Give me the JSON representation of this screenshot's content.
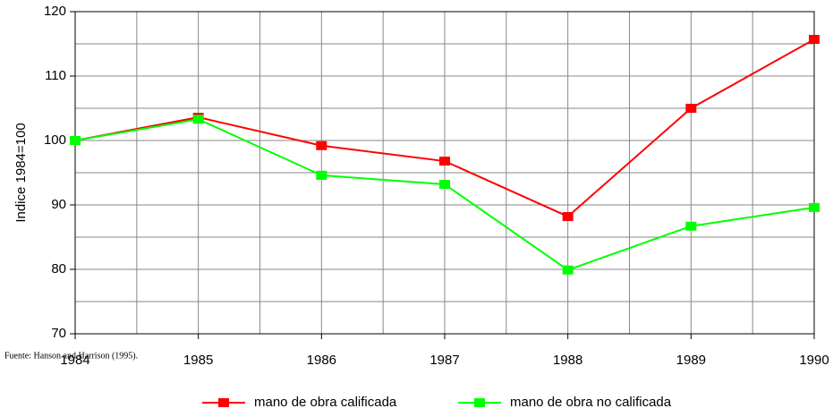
{
  "chart_data": {
    "type": "line",
    "y_label": "Indice 1984=100",
    "source": "Fuente: Hanson and Harrison (1995).",
    "x": [
      1984,
      1985,
      1986,
      1987,
      1988,
      1989,
      1990
    ],
    "series": [
      {
        "name": "mano de obra calificada",
        "color": "#ff0000",
        "values": [
          100,
          103.6,
          99.2,
          96.8,
          88.2,
          105,
          115.7
        ]
      },
      {
        "name": "mano de obra no calificada",
        "color": "#00ff00",
        "values": [
          100,
          103.3,
          94.6,
          93.2,
          79.9,
          86.7,
          89.6
        ]
      }
    ],
    "xlim": [
      1984,
      1990
    ],
    "xticks": [
      1984,
      1985,
      1986,
      1987,
      1988,
      1989,
      1990
    ],
    "ylim": [
      70,
      120
    ],
    "yticks": [
      70,
      80,
      90,
      100,
      110,
      120
    ],
    "grid": true,
    "xgrid": [
      1984.5,
      1985,
      1985.5,
      1986,
      1986.5,
      1987,
      1987.5,
      1988,
      1988.5,
      1989,
      1989.5
    ],
    "ygrid": [
      75,
      80,
      85,
      90,
      95,
      100,
      105,
      110,
      115
    ],
    "legend": "bottom"
  }
}
